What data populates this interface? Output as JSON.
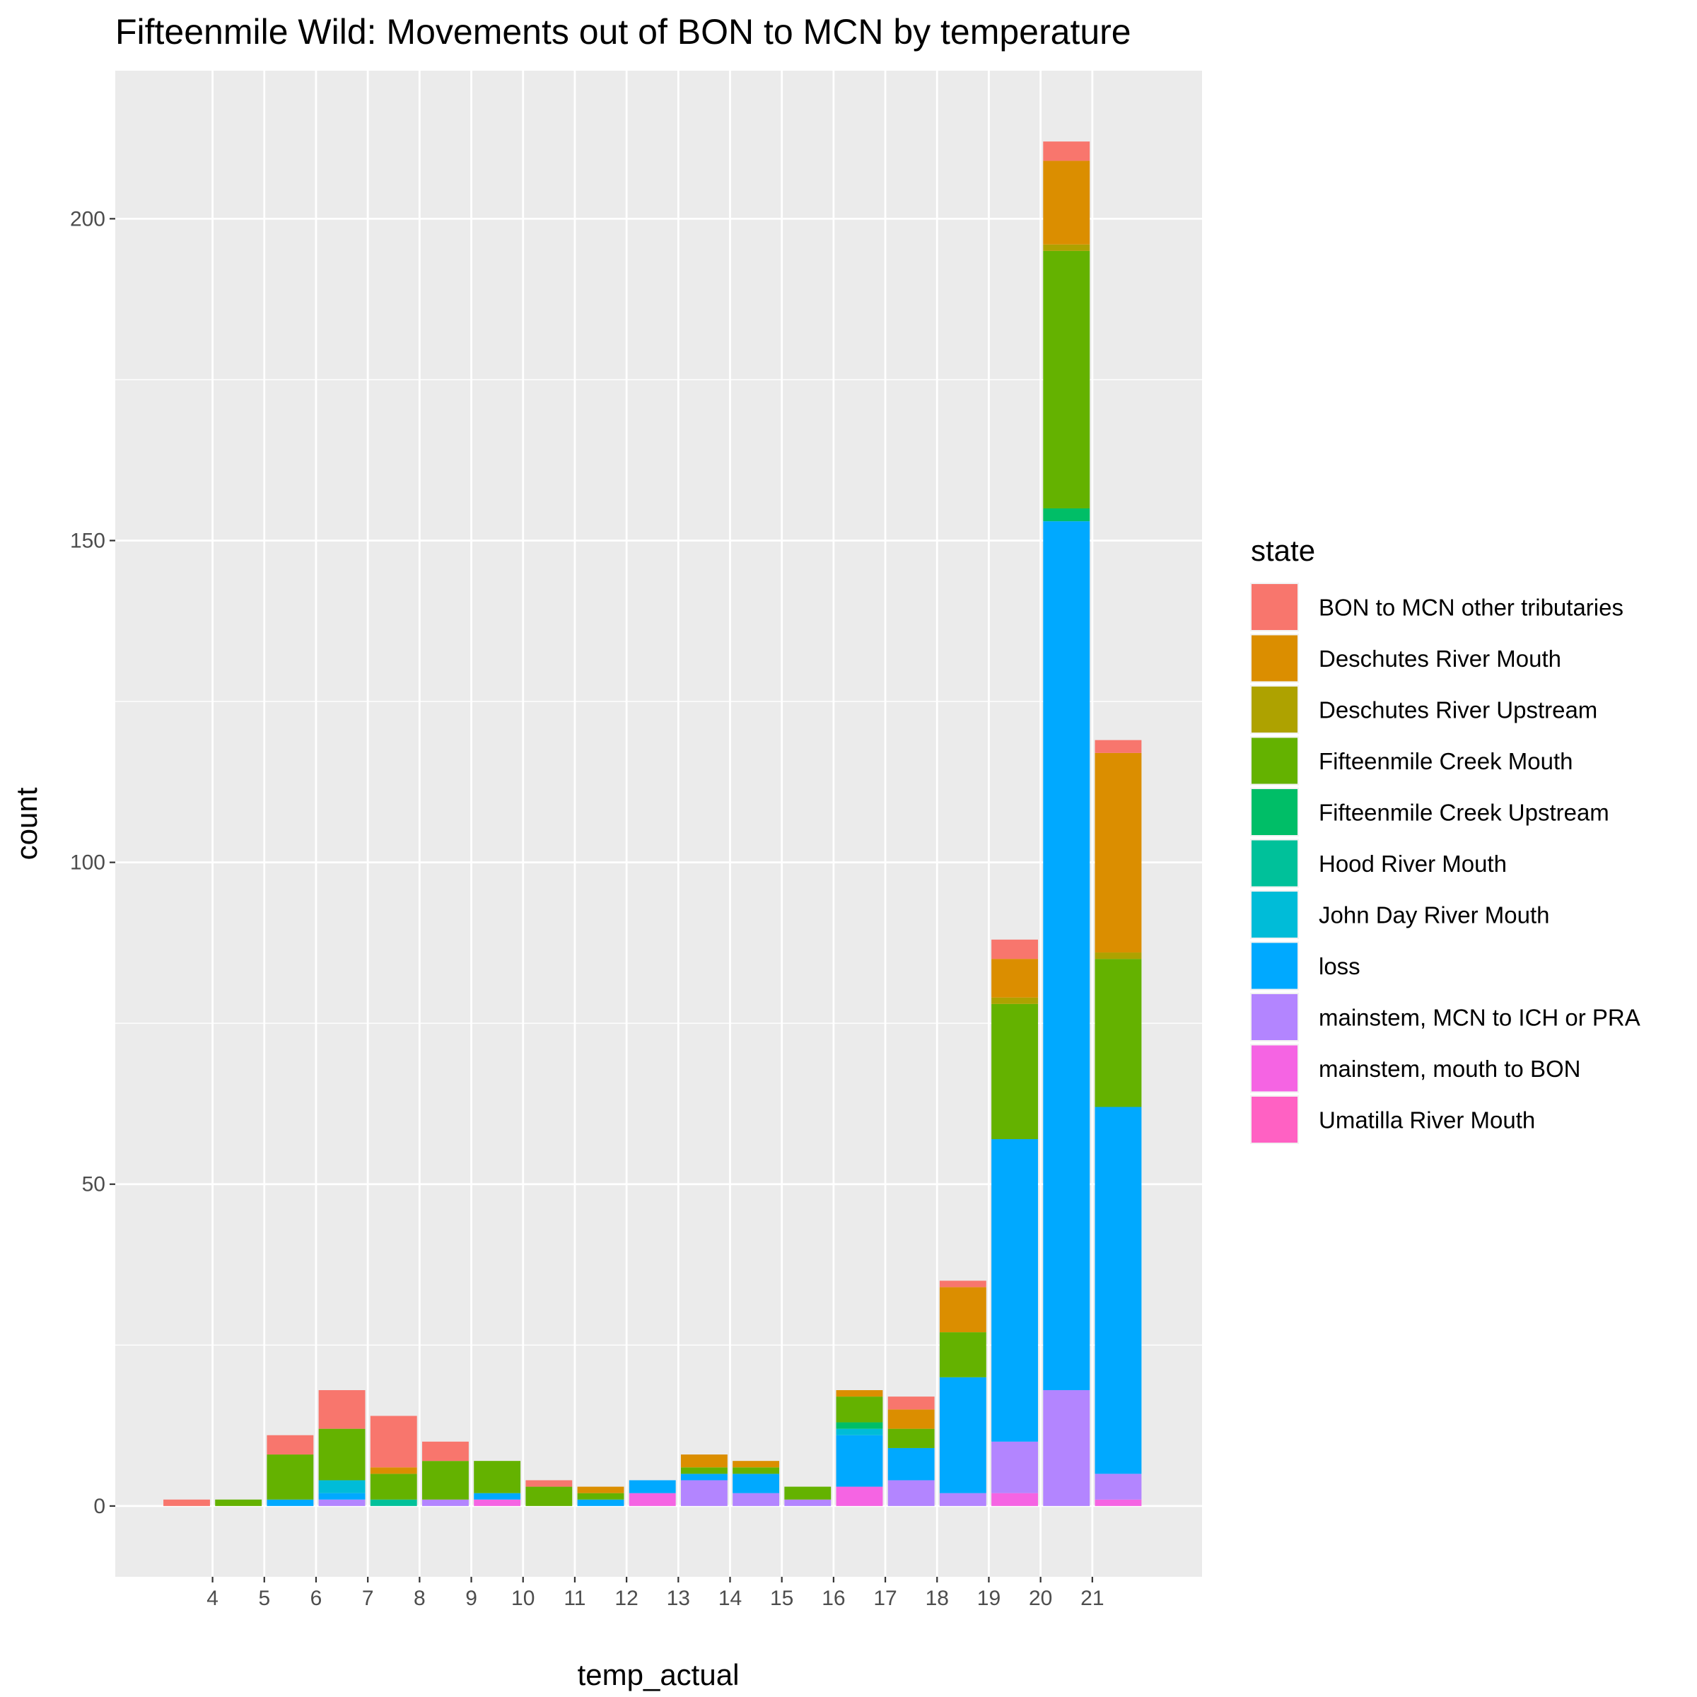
{
  "chart_data": {
    "type": "bar",
    "stacked": true,
    "title": "Fifteenmile Wild: Movements out of BON to MCN by temperature",
    "xlabel": "temp_actual",
    "ylabel": "count",
    "x_ticks": [
      4,
      5,
      6,
      7,
      8,
      9,
      10,
      11,
      12,
      13,
      14,
      15,
      16,
      17,
      18,
      19,
      20,
      21
    ],
    "y_ticks": [
      0,
      50,
      100,
      150,
      200
    ],
    "xlim": [
      2.12,
      23.12
    ],
    "ylim": [
      -11,
      223
    ],
    "bar_width": 0.9,
    "grid": true,
    "legend_title": "state",
    "legend_position": "right",
    "categories": [
      3.5,
      4.5,
      5.5,
      6.5,
      7.5,
      8.5,
      9.5,
      10.5,
      11.5,
      12.5,
      13.5,
      14.5,
      15.5,
      16.5,
      17.5,
      18.5,
      19.5,
      20.5,
      21.5
    ],
    "series": [
      {
        "name": "Umatilla River Mouth",
        "color": "#FF61C3",
        "values": [
          0,
          0,
          0,
          0,
          0,
          0,
          0,
          0,
          0,
          0,
          0,
          0,
          0,
          0,
          0,
          0,
          0,
          0,
          0
        ]
      },
      {
        "name": "mainstem, mouth to BON",
        "color": "#F564E3",
        "values": [
          0,
          0,
          0,
          0,
          0,
          0,
          1,
          0,
          0,
          2,
          0,
          0,
          0,
          3,
          0,
          0,
          2,
          0,
          1
        ]
      },
      {
        "name": "mainstem, MCN to ICH or PRA",
        "color": "#B385FF",
        "values": [
          0,
          0,
          0,
          1,
          0,
          1,
          0,
          0,
          0,
          0,
          4,
          2,
          1,
          0,
          4,
          2,
          8,
          18,
          4
        ]
      },
      {
        "name": "loss",
        "color": "#00A9FF",
        "values": [
          0,
          0,
          1,
          1,
          0,
          0,
          1,
          0,
          1,
          2,
          1,
          3,
          0,
          8,
          5,
          18,
          47,
          135,
          57
        ]
      },
      {
        "name": "John Day River Mouth",
        "color": "#00BCD8",
        "values": [
          0,
          0,
          0,
          2,
          0,
          0,
          0,
          0,
          0,
          0,
          0,
          0,
          0,
          1,
          0,
          0,
          0,
          0,
          0
        ]
      },
      {
        "name": "Hood River Mouth",
        "color": "#00C19A",
        "values": [
          0,
          0,
          0,
          0,
          1,
          0,
          0,
          0,
          0,
          0,
          0,
          0,
          0,
          0,
          0,
          0,
          0,
          0,
          0
        ]
      },
      {
        "name": "Fifteenmile Creek Upstream",
        "color": "#00BE67",
        "values": [
          0,
          0,
          0,
          0,
          0,
          0,
          0,
          0,
          0,
          0,
          0,
          0,
          0,
          1,
          0,
          0,
          0,
          2,
          0
        ]
      },
      {
        "name": "Fifteenmile Creek Mouth",
        "color": "#64B200",
        "values": [
          0,
          1,
          7,
          8,
          4,
          6,
          5,
          3,
          1,
          0,
          1,
          1,
          2,
          4,
          3,
          7,
          21,
          40,
          23
        ]
      },
      {
        "name": "Deschutes River Upstream",
        "color": "#AEA200",
        "values": [
          0,
          0,
          0,
          0,
          0,
          0,
          0,
          0,
          0,
          0,
          0,
          0,
          0,
          0,
          0,
          0,
          1,
          1,
          1
        ]
      },
      {
        "name": "Deschutes River Mouth",
        "color": "#DB8E00",
        "values": [
          0,
          0,
          0,
          0,
          1,
          0,
          0,
          0,
          1,
          0,
          2,
          1,
          0,
          1,
          3,
          7,
          6,
          13,
          31
        ]
      },
      {
        "name": "BON to MCN other tributaries",
        "color": "#F8766D",
        "values": [
          1,
          0,
          3,
          6,
          8,
          3,
          0,
          1,
          0,
          0,
          0,
          0,
          0,
          0,
          2,
          1,
          3,
          3,
          2
        ]
      }
    ],
    "legend_order": [
      "BON to MCN other tributaries",
      "Deschutes River Mouth",
      "Deschutes River Upstream",
      "Fifteenmile Creek Mouth",
      "Fifteenmile Creek Upstream",
      "Hood River Mouth",
      "John Day River Mouth",
      "loss",
      "mainstem, MCN to ICH or PRA",
      "mainstem, mouth to BON",
      "Umatilla River Mouth"
    ],
    "colors": {
      "panel_background": "#EBEBEB",
      "grid": "#FFFFFF",
      "tick": "#333333",
      "tick_label": "#4D4D4D"
    }
  }
}
